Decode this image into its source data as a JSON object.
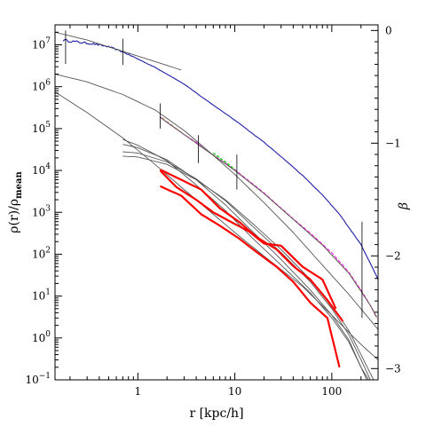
{
  "chart_data": {
    "type": "line",
    "xlabel": "r [kpc/h]",
    "ylabel": "ρ(r)/ρ_mean",
    "ylabel_parts": {
      "main": "ρ(r)/ρ",
      "sub": "mean"
    },
    "y2label": "β",
    "x_scale": "log",
    "y_scale": "log",
    "xlim": [
      0.14,
      300
    ],
    "ylim": [
      0.1,
      30000000
    ],
    "y2lim": [
      -3.1,
      0.05
    ],
    "grid": false,
    "x_ticks": [
      {
        "value": 1,
        "label": "1"
      },
      {
        "value": 10,
        "label": "10"
      },
      {
        "value": 100,
        "label": "100"
      }
    ],
    "y_ticks": [
      {
        "value": 0.1,
        "label": "10",
        "exp": "−1"
      },
      {
        "value": 1,
        "label": "10",
        "exp": "0"
      },
      {
        "value": 10,
        "label": "10",
        "exp": "1"
      },
      {
        "value": 100,
        "label": "10",
        "exp": "2"
      },
      {
        "value": 1000,
        "label": "10",
        "exp": "3"
      },
      {
        "value": 10000,
        "label": "10",
        "exp": "4"
      },
      {
        "value": 100000,
        "label": "10",
        "exp": "5"
      },
      {
        "value": 1000000,
        "label": "10",
        "exp": "6"
      },
      {
        "value": 10000000,
        "label": "10",
        "exp": "7"
      }
    ],
    "y2_ticks": [
      {
        "value": 0,
        "label": "0"
      },
      {
        "value": -1,
        "label": "−1"
      },
      {
        "value": -2,
        "label": "−2"
      },
      {
        "value": -3,
        "label": "−3"
      }
    ],
    "colors": {
      "blue": "#1f1fa8",
      "red": "#ff0000",
      "gray": "#444444",
      "pink": "#ff00ff",
      "green": "#00cc00",
      "tan": "#c8a050"
    },
    "series": [
      {
        "color": "#1f1fa8",
        "width": 1.1,
        "axis": "y",
        "noise": 0.06,
        "points": [
          [
            0.17,
            13000000.0
          ],
          [
            0.25,
            11500000.0
          ],
          [
            0.35,
            10500000.0
          ],
          [
            0.5,
            9000000.0
          ],
          [
            0.7,
            6800000.0
          ],
          [
            1,
            4600000.0
          ],
          [
            1.5,
            2900000.0
          ],
          [
            2,
            2000000.0
          ],
          [
            3,
            1150000.0
          ],
          [
            5,
            490000.0
          ],
          [
            10,
            160000.0
          ],
          [
            20,
            47000.0
          ],
          [
            30,
            21500.0
          ],
          [
            50,
            7600.0
          ],
          [
            80,
            2600.0
          ],
          [
            120,
            900
          ],
          [
            200,
            170
          ],
          [
            260,
            50
          ],
          [
            300,
            25
          ]
        ]
      },
      {
        "color": "#ff00ff",
        "width": 1.0,
        "axis": "y",
        "dash": "4,2",
        "points": [
          [
            1.7,
            190000.0
          ],
          [
            2,
            140000.0
          ],
          [
            3,
            72000.0
          ],
          [
            4,
            47000.0
          ],
          [
            5,
            31000.0
          ],
          [
            10,
            10500.0
          ],
          [
            20,
            2900.0
          ],
          [
            40,
            700
          ],
          [
            60,
            320
          ],
          [
            100,
            108
          ],
          [
            150,
            37
          ],
          [
            200,
            14
          ],
          [
            250,
            6
          ],
          [
            290,
            3
          ]
        ]
      },
      {
        "color": "#c8a050",
        "width": 1.0,
        "axis": "y",
        "dash": "3,3",
        "points": [
          [
            1.8,
            180000.0
          ],
          [
            3,
            73000.0
          ],
          [
            5,
            31500.0
          ],
          [
            10,
            10200.0
          ],
          [
            20,
            2850.0
          ],
          [
            40,
            690
          ],
          [
            80,
            170
          ],
          [
            150,
            36
          ],
          [
            200,
            13.5
          ],
          [
            260,
            5
          ],
          [
            290,
            3
          ]
        ]
      },
      {
        "color": "#00cc00",
        "width": 1.3,
        "axis": "y",
        "dash": "3,2",
        "points": [
          [
            6,
            26000.0
          ],
          [
            8,
            16000.0
          ],
          [
            10,
            10500.0
          ]
        ]
      },
      {
        "color": "#555555",
        "width": 0.9,
        "axis": "y",
        "points": [
          [
            1.7,
            185000.0
          ],
          [
            3,
            72000.0
          ],
          [
            5,
            31000.0
          ],
          [
            10,
            10000.0
          ],
          [
            20,
            2800.0
          ],
          [
            40,
            680
          ],
          [
            80,
            165
          ],
          [
            150,
            35
          ],
          [
            200,
            13
          ],
          [
            250,
            6
          ],
          [
            290,
            3.2
          ]
        ]
      },
      {
        "color": "#555555",
        "width": 0.9,
        "axis": "y",
        "points": [
          [
            0.14,
            20000000.0
          ],
          [
            0.3,
            13000000.0
          ],
          [
            0.7,
            7000000.0
          ],
          [
            1.5,
            4000000.0
          ],
          [
            2.8,
            2500000.0
          ]
        ]
      },
      {
        "color": "#555555",
        "width": 0.9,
        "axis": "y",
        "points": [
          [
            0.14,
            2000000.0
          ],
          [
            0.3,
            1300000.0
          ],
          [
            0.7,
            650000.0
          ],
          [
            1.5,
            280000.0
          ],
          [
            3,
            90000.0
          ],
          [
            6,
            23000.0
          ],
          [
            10,
            8000.0
          ],
          [
            20,
            1700.0
          ],
          [
            40,
            330
          ],
          [
            80,
            55
          ],
          [
            150,
            11
          ],
          [
            300,
            1.6
          ]
        ]
      },
      {
        "color": "#555555",
        "width": 0.9,
        "axis": "y",
        "points": [
          [
            0.14,
            750000.0
          ],
          [
            0.3,
            240000.0
          ],
          [
            0.7,
            60000.0
          ],
          [
            1.5,
            14000.0
          ],
          [
            3,
            3500.0
          ],
          [
            6,
            900
          ],
          [
            10,
            330
          ],
          [
            20,
            90
          ],
          [
            50,
            17
          ],
          [
            100,
            3.5
          ],
          [
            200,
            0.7
          ],
          [
            300,
            0.3
          ]
        ]
      },
      {
        "color": "#555555",
        "width": 0.9,
        "axis": "y",
        "points": [
          [
            0.7,
            55000.0
          ],
          [
            1,
            40000.0
          ],
          [
            2,
            17000.0
          ],
          [
            4,
            4500.0
          ],
          [
            8,
            1100.0
          ],
          [
            15,
            250
          ],
          [
            30,
            55
          ],
          [
            60,
            12
          ],
          [
            100,
            3
          ],
          [
            150,
            0.8
          ],
          [
            200,
            0.2
          ],
          [
            230,
            0.1
          ]
        ]
      },
      {
        "color": "#555555",
        "width": 0.9,
        "axis": "y",
        "points": [
          [
            0.7,
            42000.0
          ],
          [
            1,
            35000.0
          ],
          [
            2,
            18000.0
          ],
          [
            4,
            6000.0
          ],
          [
            8,
            1500.0
          ],
          [
            15,
            360
          ],
          [
            30,
            75
          ],
          [
            60,
            14
          ],
          [
            100,
            3.5
          ],
          [
            150,
            0.9
          ],
          [
            200,
            0.2
          ],
          [
            240,
            0.1
          ]
        ]
      },
      {
        "color": "#555555",
        "width": 0.9,
        "axis": "y",
        "points": [
          [
            0.7,
            28000.0
          ],
          [
            1,
            26000.0
          ],
          [
            2,
            16000.0
          ],
          [
            4,
            6300.0
          ],
          [
            8,
            1900.0
          ],
          [
            15,
            480
          ],
          [
            30,
            110
          ],
          [
            60,
            22
          ],
          [
            100,
            5
          ],
          [
            150,
            1.2
          ],
          [
            200,
            0.3
          ],
          [
            250,
            0.1
          ]
        ]
      },
      {
        "color": "#555555",
        "width": 0.9,
        "axis": "y",
        "points": [
          [
            0.7,
            22000.0
          ],
          [
            1,
            21000.0
          ],
          [
            2,
            14000.0
          ],
          [
            4,
            6000.0
          ],
          [
            8,
            2000.0
          ],
          [
            15,
            560
          ],
          [
            30,
            130
          ],
          [
            60,
            25
          ],
          [
            100,
            6
          ],
          [
            150,
            1.5
          ],
          [
            200,
            0.4
          ],
          [
            270,
            0.1
          ]
        ]
      },
      {
        "color": "#ff0000",
        "width": 2.2,
        "axis": "y",
        "points": [
          [
            1.7,
            10500.0
          ],
          [
            2.8,
            6000.0
          ],
          [
            4.5,
            3500.0
          ],
          [
            7,
            1250.0
          ],
          [
            11,
            600
          ],
          [
            17,
            250
          ],
          [
            27,
            130
          ],
          [
            40,
            52
          ],
          [
            60,
            25
          ],
          [
            90,
            8
          ],
          [
            130,
            2.5
          ]
        ]
      },
      {
        "color": "#ff0000",
        "width": 2.2,
        "axis": "y",
        "points": [
          [
            1.7,
            4200.0
          ],
          [
            2.8,
            2500.0
          ],
          [
            4.5,
            900
          ],
          [
            7,
            480
          ],
          [
            11,
            240
          ],
          [
            17,
            110
          ],
          [
            27,
            50
          ],
          [
            40,
            22
          ],
          [
            60,
            7
          ],
          [
            90,
            3
          ],
          [
            120,
            0.2
          ]
        ]
      },
      {
        "color": "#ff0000",
        "width": 2.2,
        "axis": "y",
        "points": [
          [
            1.7,
            10000.0
          ],
          [
            2.5,
            4000.0
          ],
          [
            4,
            2000.0
          ],
          [
            6,
            1000.0
          ],
          [
            9,
            600
          ],
          [
            14,
            350
          ],
          [
            20,
            180
          ],
          [
            30,
            160
          ],
          [
            50,
            50
          ],
          [
            80,
            25
          ],
          [
            110,
            5
          ]
        ]
      }
    ],
    "markers": [
      {
        "x": 0.18,
        "y_low": 3500000.0,
        "y_high": 22000000.0
      },
      {
        "x": 0.7,
        "y_low": 3300000.0,
        "y_high": 14000000.0
      },
      {
        "x": 1.7,
        "y_low": 100000.0,
        "y_high": 400000.0
      },
      {
        "x": 4.2,
        "y_low": 15000.0,
        "y_high": 70000.0
      },
      {
        "x": 10.5,
        "y_low": 3500.0,
        "y_high": 24000.0
      },
      {
        "x": 205,
        "y_low": 3,
        "y_high": 600
      }
    ]
  }
}
